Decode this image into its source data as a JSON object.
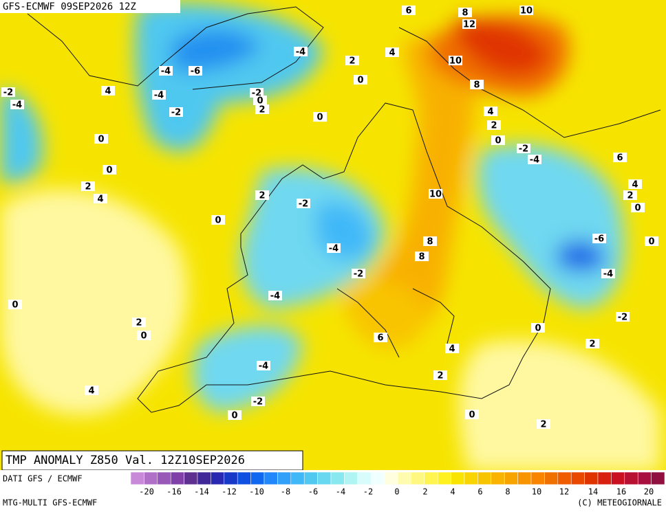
{
  "header": {
    "title": "GFS-ECMWF 09SEP2026 12Z"
  },
  "map": {
    "label": "TMP ANOMALY Z850 Val. 12Z10SEP2026",
    "contour_labels": [
      6,
      8,
      10,
      12,
      -4,
      4,
      2,
      -4,
      -6,
      10,
      4,
      0,
      8,
      -2,
      -4,
      -2,
      0,
      -4,
      2,
      -2,
      4,
      0,
      2,
      0,
      0,
      -2,
      -4,
      6,
      0,
      2,
      4,
      4,
      2,
      10,
      2,
      -2,
      0,
      0,
      8,
      -6,
      0,
      -4,
      8,
      -2,
      -4,
      -4,
      0,
      -2,
      2,
      0,
      0,
      6,
      2,
      4,
      -4,
      2,
      4,
      -2,
      0,
      0,
      2
    ]
  },
  "colorbar": {
    "ticks": [
      -20,
      -16,
      -14,
      -12,
      -10,
      -8,
      -6,
      -4,
      -2,
      0,
      2,
      4,
      6,
      8,
      10,
      12,
      14,
      16,
      20
    ],
    "colors": [
      "#c88ad8",
      "#b070c8",
      "#9858b8",
      "#8040a8",
      "#603090",
      "#402898",
      "#2828b0",
      "#1838c8",
      "#1050e0",
      "#1068f0",
      "#2088f8",
      "#30a0f8",
      "#40b8f8",
      "#50c8f0",
      "#68d8f0",
      "#88e8f0",
      "#b0f4f4",
      "#d8fcfc",
      "#f0ffff",
      "#ffffe0",
      "#fffcb0",
      "#fff880",
      "#fff450",
      "#fff020",
      "#f8e400",
      "#f8d400",
      "#f8c400",
      "#f8b400",
      "#f8a400",
      "#f89400",
      "#f88400",
      "#f07000",
      "#f05c00",
      "#e84800",
      "#e03400",
      "#d82010",
      "#c81020",
      "#b81030",
      "#a81040",
      "#901040"
    ],
    "source_left": "DATI GFS / ECMWF",
    "model": "MTG-MULTI GFS-ECMWF",
    "copyright": "(C) METEOGIORNALE"
  }
}
